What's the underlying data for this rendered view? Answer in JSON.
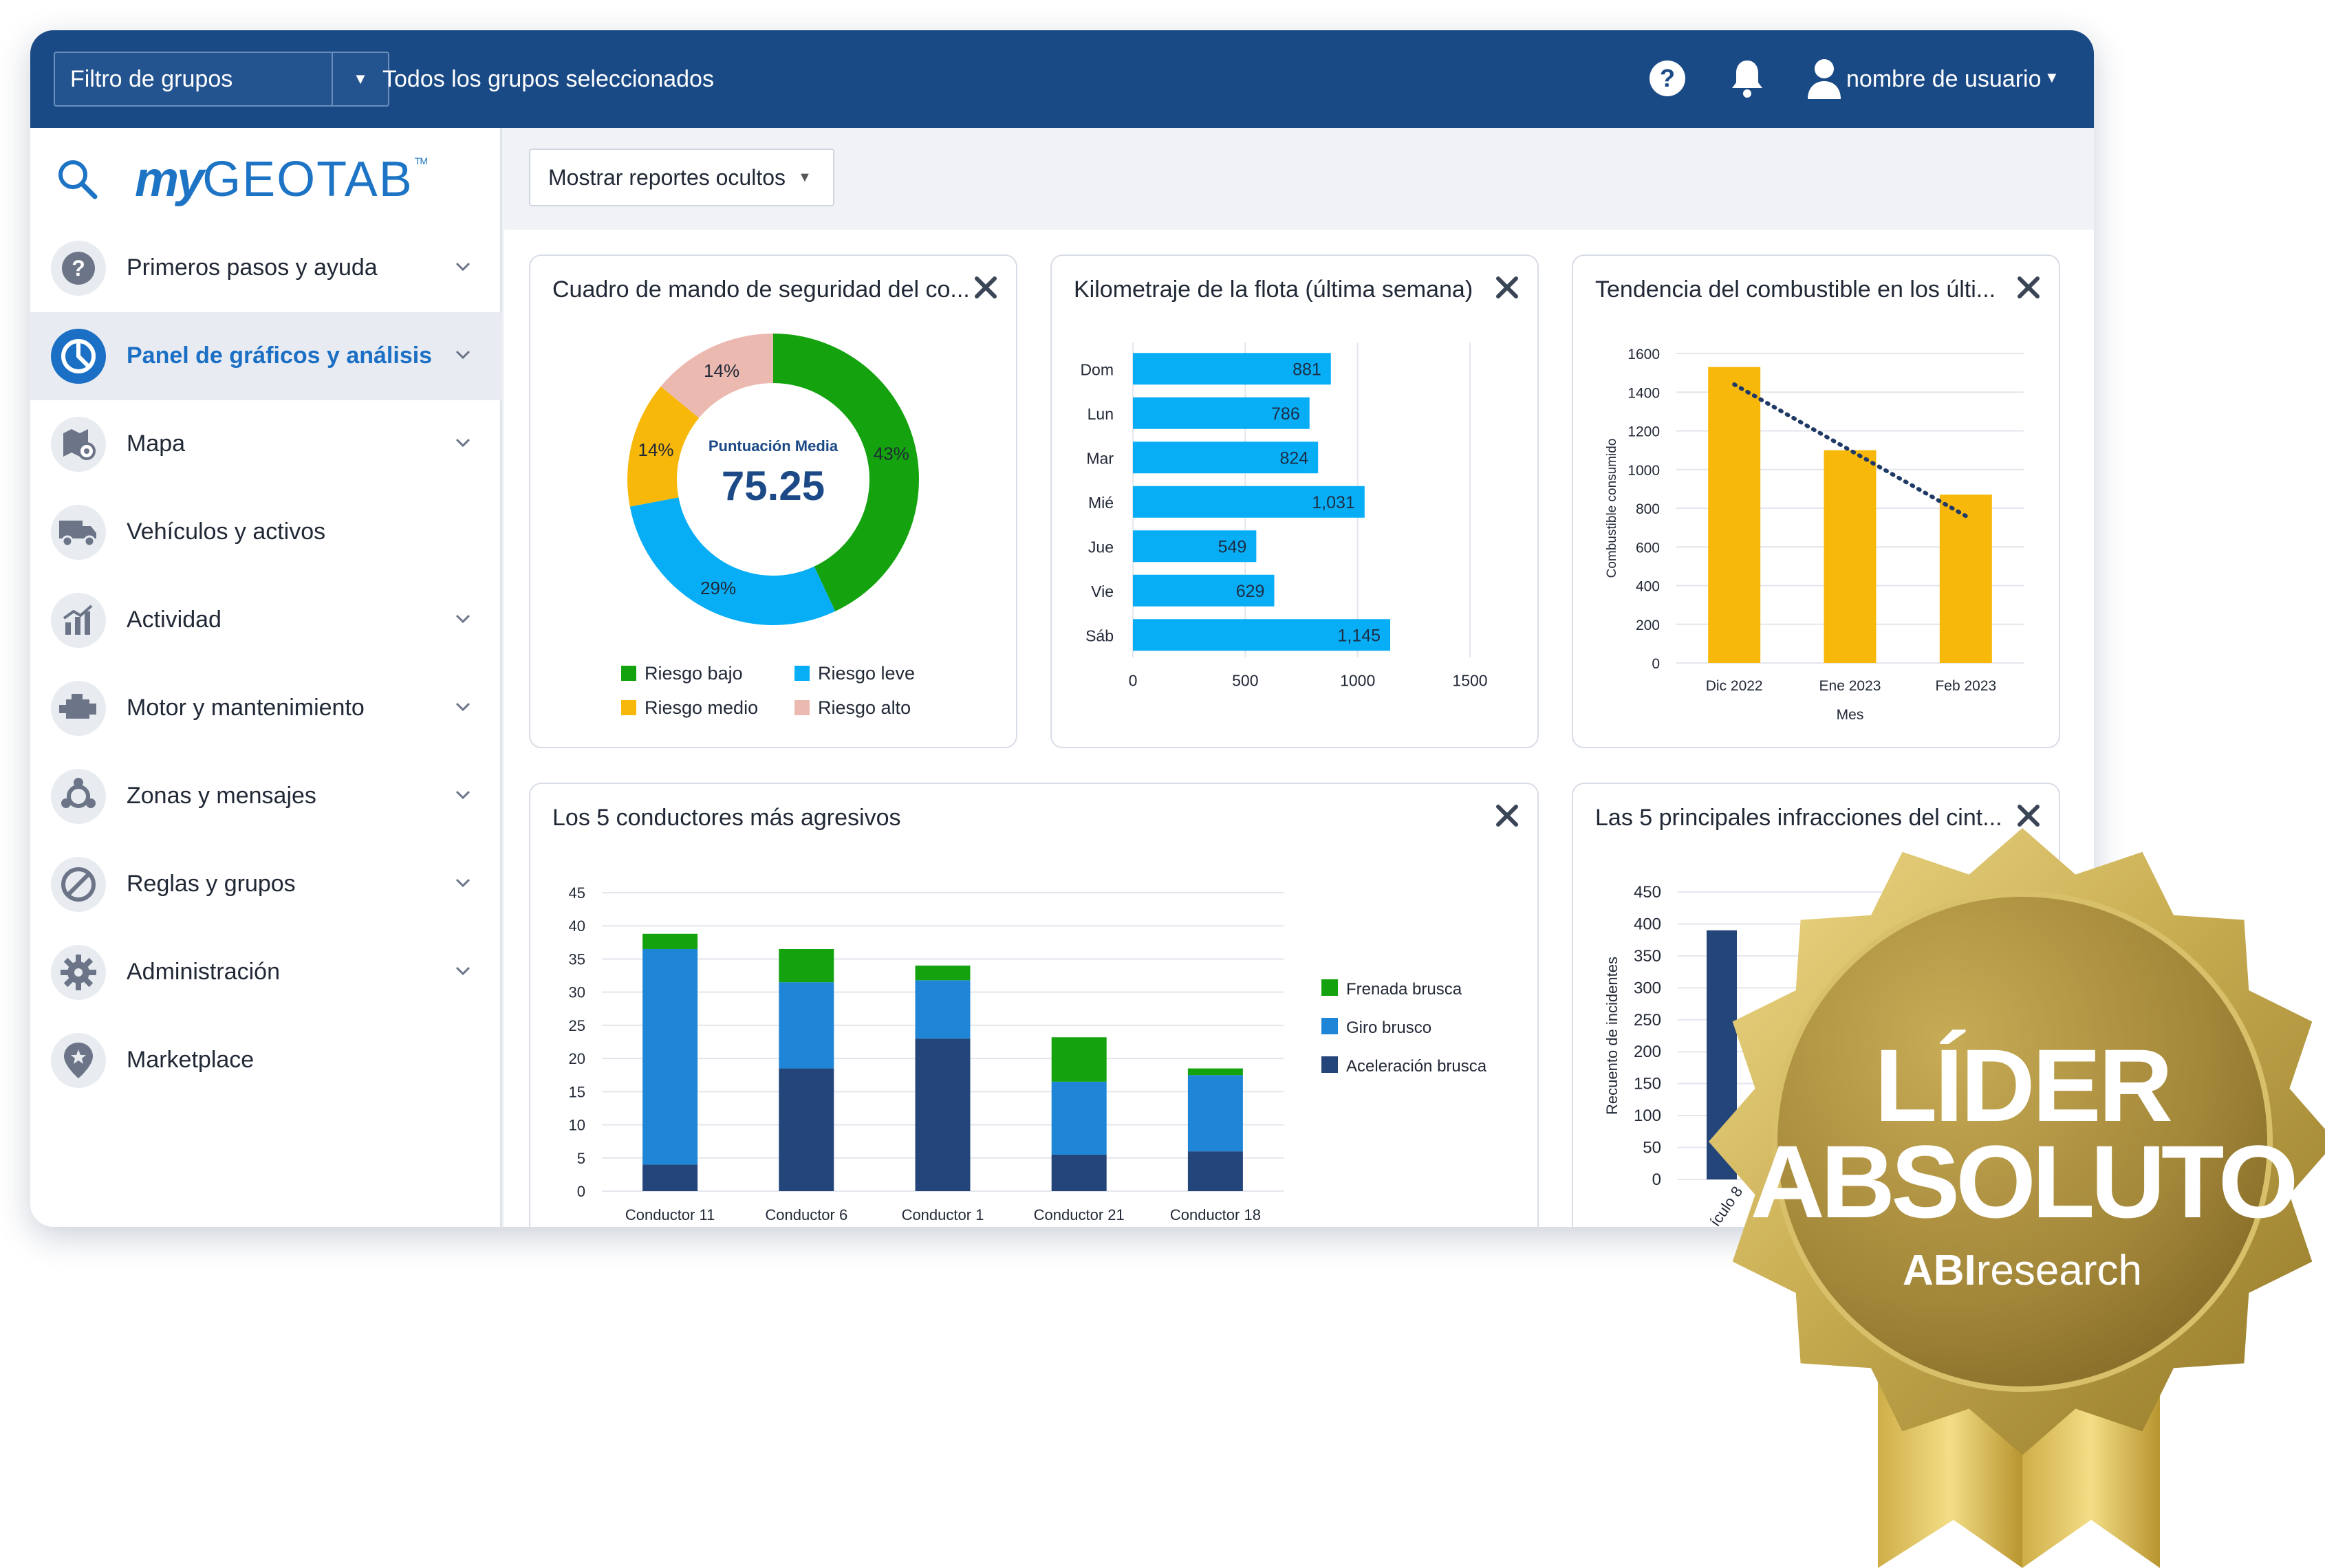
{
  "topbar": {
    "group_filter_placeholder": "Filtro de grupos",
    "group_summary": "Todos los grupos seleccionados",
    "user_name": "nombre de usuario",
    "icons": [
      "help-icon",
      "bell-icon",
      "user-icon"
    ]
  },
  "sidebar": {
    "logo": {
      "my": "my",
      "geotab": "GEOTAB",
      "tm": "TM"
    },
    "items": [
      {
        "label": "Primeros pasos y ayuda",
        "icon": "help-circle-icon",
        "chevron": true
      },
      {
        "label": "Panel de gráficos y análisis",
        "icon": "dashboard-icon",
        "chevron": true,
        "active": true
      },
      {
        "label": "Mapa",
        "icon": "map-icon",
        "chevron": true
      },
      {
        "label": "Vehículos y activos",
        "icon": "truck-icon",
        "chevron": false
      },
      {
        "label": "Actividad",
        "icon": "activity-chart-icon",
        "chevron": true
      },
      {
        "label": "Motor y mantenimiento",
        "icon": "engine-icon",
        "chevron": true
      },
      {
        "label": "Zonas y mensajes",
        "icon": "zones-icon",
        "chevron": true
      },
      {
        "label": "Reglas y grupos",
        "icon": "rules-icon",
        "chevron": true
      },
      {
        "label": "Administración",
        "icon": "gear-icon",
        "chevron": true
      },
      {
        "label": "Marketplace",
        "icon": "marketplace-icon",
        "chevron": false
      }
    ]
  },
  "toolbar": {
    "hidden_reports_label": "Mostrar reportes ocultos"
  },
  "cards": {
    "safety": {
      "title": "Cuadro de mando de seguridad del co...",
      "center_label": "Puntuación Media",
      "center_value": "75.25"
    },
    "mileage": {
      "title": "Kilometraje de la flota (última semana)"
    },
    "fuel": {
      "title": "Tendencia del combustible en los últi..."
    },
    "drivers": {
      "title": "Los 5 conductores más agresivos"
    },
    "infractions": {
      "title": "Las 5 principales infracciones del cint..."
    }
  },
  "chart_data": [
    {
      "id": "safety",
      "type": "pie",
      "labels": [
        "Riesgo bajo",
        "Riesgo leve",
        "Riesgo medio",
        "Riesgo alto"
      ],
      "values": [
        43,
        29,
        14,
        14
      ],
      "slice_labels": [
        "43%",
        "29%",
        "14%",
        "14%"
      ],
      "colors": [
        "#14a30f",
        "#08aef5",
        "#f7b80a",
        "#ecb9b1"
      ],
      "legend_position": "bottom"
    },
    {
      "id": "mileage",
      "type": "bar",
      "orientation": "horizontal",
      "categories": [
        "Dom",
        "Lun",
        "Mar",
        "Mié",
        "Jue",
        "Vie",
        "Sáb"
      ],
      "values": [
        881,
        786,
        824,
        1031,
        549,
        629,
        1145
      ],
      "value_labels": [
        "881",
        "786",
        "824",
        "1,031",
        "549",
        "629",
        "1,145"
      ],
      "xlim": [
        0,
        1500
      ],
      "xticks": [
        "0",
        "500",
        "1000",
        "1500"
      ],
      "color": "#08aef5"
    },
    {
      "id": "fuel",
      "type": "bar",
      "categories": [
        "Dic 2022",
        "Ene 2023",
        "Feb 2023"
      ],
      "values": [
        1530,
        1100,
        870
      ],
      "trend": [
        1440,
        1100,
        760
      ],
      "xlabel": "Mes",
      "ylabel": "Combustible consumido",
      "ylim": [
        0,
        1600
      ],
      "yticks": [
        "0",
        "200",
        "400",
        "600",
        "800",
        "1000",
        "1200",
        "1400",
        "1600"
      ],
      "color": "#f7b80a",
      "trend_color": "#1f3a66"
    },
    {
      "id": "drivers",
      "type": "bar",
      "stacked": true,
      "categories": [
        "Conductor 11",
        "Conductor 6",
        "Conductor 1",
        "Conductor 21",
        "Conductor 18"
      ],
      "series": [
        {
          "name": "Aceleración brusca",
          "values": [
            4,
            18.5,
            23,
            5.5,
            6
          ],
          "color": "#24457a"
        },
        {
          "name": "Giro brusco",
          "values": [
            32.5,
            13,
            8.8,
            11,
            11.5
          ],
          "color": "#1f85d6"
        },
        {
          "name": "Frenada brusca",
          "values": [
            2.3,
            5,
            2.2,
            6.7,
            1
          ],
          "color": "#14a30f"
        }
      ],
      "legend_order": [
        "Frenada brusca",
        "Giro brusco",
        "Aceleración brusca"
      ],
      "ylim": [
        0,
        45
      ],
      "yticks": [
        "0",
        "5",
        "10",
        "15",
        "20",
        "25",
        "30",
        "35",
        "40",
        "45"
      ],
      "legend_position": "right"
    },
    {
      "id": "infractions",
      "type": "bar",
      "categories": [
        "ículo 8"
      ],
      "values": [
        390
      ],
      "ylabel": "Recuento de incidentes",
      "ylim": [
        0,
        450
      ],
      "yticks": [
        "0",
        "50",
        "100",
        "150",
        "200",
        "250",
        "300",
        "350",
        "400",
        "450"
      ],
      "color": "#24457a"
    }
  ],
  "badge": {
    "line1": "LÍDER",
    "line2": "ABSOLUTO",
    "brand_bold": "ABI",
    "brand_light": "research"
  }
}
